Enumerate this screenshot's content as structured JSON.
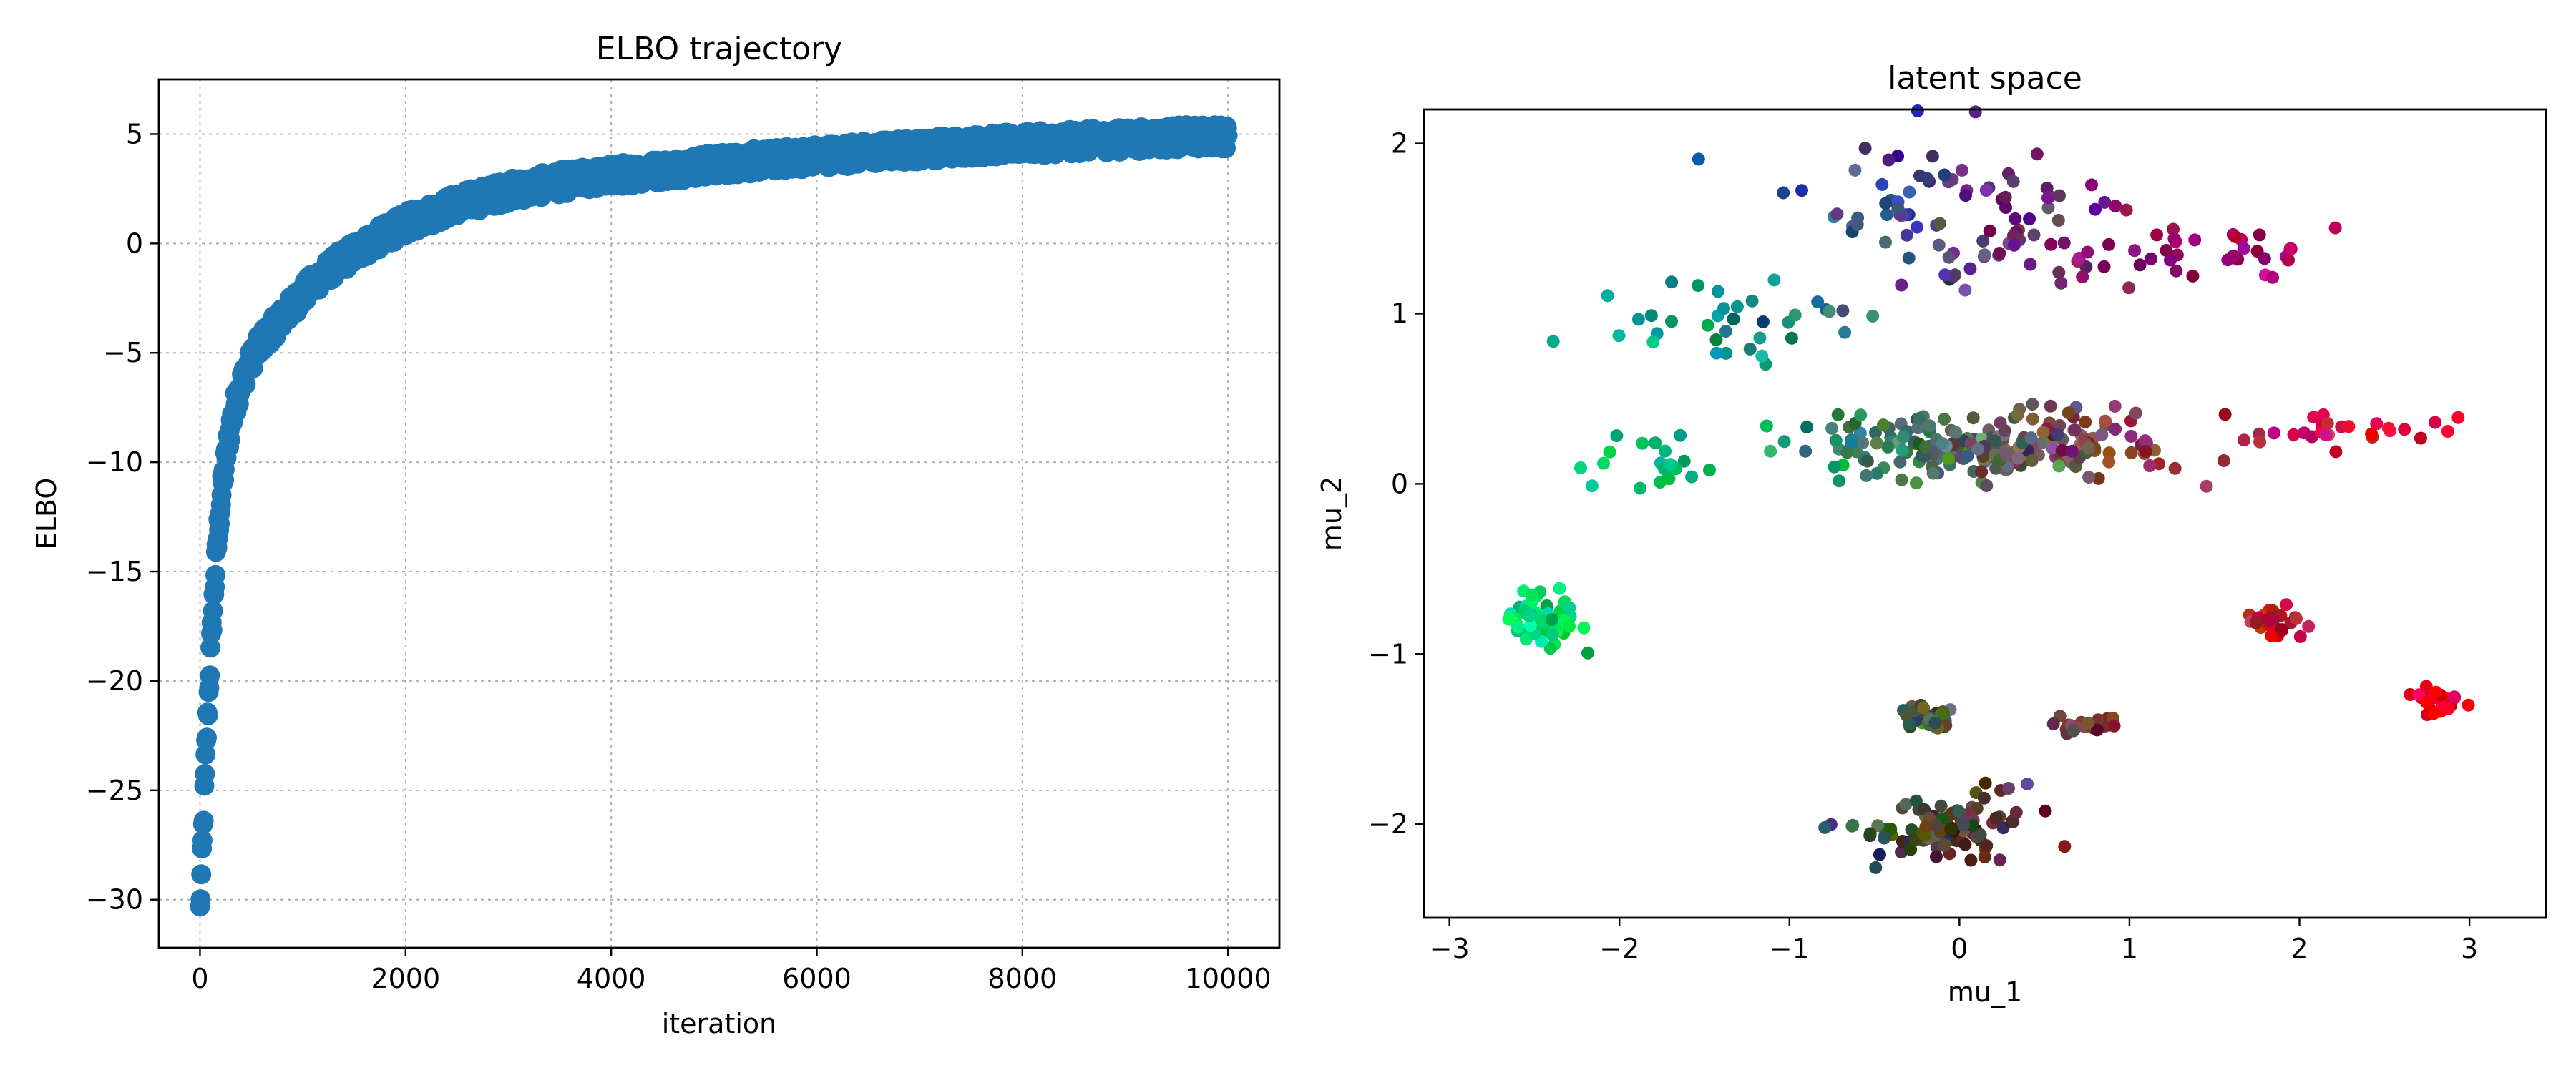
{
  "colors": {
    "elbo_series": "#1f77b4",
    "grid": "#b0b0b0"
  },
  "chart_data": [
    {
      "type": "scatter",
      "title": "ELBO trajectory",
      "xlabel": "iteration",
      "ylabel": "ELBO",
      "xlim": [
        -400,
        10500
      ],
      "ylim": [
        -32.2,
        7.5
      ],
      "xticks": [
        0,
        2000,
        4000,
        6000,
        8000,
        10000
      ],
      "xtick_labels": [
        "0",
        "2000",
        "4000",
        "6000",
        "8000",
        "10000"
      ],
      "yticks": [
        -30,
        -25,
        -20,
        -15,
        -10,
        -5,
        0,
        5
      ],
      "ytick_labels": [
        "−30",
        "−25",
        "−20",
        "−15",
        "−10",
        "−5",
        "0",
        "5"
      ],
      "grid": true,
      "marker_color": "#1f77b4",
      "trend": [
        [
          0,
          -30.5
        ],
        [
          20,
          -28
        ],
        [
          40,
          -25.5
        ],
        [
          60,
          -23
        ],
        [
          80,
          -21
        ],
        [
          100,
          -19
        ],
        [
          120,
          -17.2
        ],
        [
          150,
          -15
        ],
        [
          180,
          -13
        ],
        [
          220,
          -11
        ],
        [
          260,
          -9.5
        ],
        [
          300,
          -8.3
        ],
        [
          350,
          -7.2
        ],
        [
          400,
          -6.4
        ],
        [
          500,
          -5.3
        ],
        [
          600,
          -4.5
        ],
        [
          800,
          -3.4
        ],
        [
          1000,
          -2.3
        ],
        [
          1200,
          -1.4
        ],
        [
          1500,
          -0.4
        ],
        [
          1800,
          0.4
        ],
        [
          2000,
          0.9
        ],
        [
          2500,
          1.8
        ],
        [
          3000,
          2.4
        ],
        [
          3500,
          2.8
        ],
        [
          4000,
          3.1
        ],
        [
          4500,
          3.35
        ],
        [
          5000,
          3.6
        ],
        [
          5500,
          3.8
        ],
        [
          6000,
          4.0
        ],
        [
          6500,
          4.15
        ],
        [
          7000,
          4.3
        ],
        [
          7500,
          4.45
        ],
        [
          8000,
          4.55
        ],
        [
          8500,
          4.65
        ],
        [
          9000,
          4.75
        ],
        [
          9500,
          4.85
        ],
        [
          10000,
          4.9
        ]
      ]
    },
    {
      "type": "scatter",
      "title": "latent space",
      "xlabel": "mu_1",
      "ylabel": "mu_2",
      "xlim": [
        -3.15,
        3.45
      ],
      "ylim": [
        -2.55,
        2.2
      ],
      "xticks": [
        -3,
        -2,
        -1,
        0,
        1,
        2,
        3
      ],
      "xtick_labels": [
        "−3",
        "−2",
        "−1",
        "0",
        "1",
        "2",
        "3"
      ],
      "yticks": [
        -2,
        -1,
        0,
        1,
        2
      ],
      "ytick_labels": [
        "−2",
        "−1",
        "0",
        "1",
        "2"
      ],
      "grid": false,
      "clusters": [
        {
          "center": [
            -0.05,
            1.6
          ],
          "spread": [
            0.9,
            0.4
          ],
          "count": 90,
          "note": "upper arc"
        },
        {
          "center": [
            1.4,
            1.35
          ],
          "spread": [
            0.8,
            0.2
          ],
          "count": 40,
          "note": "upper arc right"
        },
        {
          "center": [
            -1.3,
            0.95
          ],
          "spread": [
            0.7,
            0.25
          ],
          "count": 35,
          "note": "upper arc left"
        },
        {
          "center": [
            0.2,
            0.22
          ],
          "spread": [
            1.0,
            0.18
          ],
          "count": 230,
          "note": "middle band"
        },
        {
          "center": [
            -1.9,
            0.1
          ],
          "spread": [
            0.4,
            0.2
          ],
          "count": 20,
          "note": "middle band left"
        },
        {
          "center": [
            2.2,
            0.3
          ],
          "spread": [
            0.55,
            0.1
          ],
          "count": 25,
          "note": "middle band right"
        },
        {
          "center": [
            -2.45,
            -0.8
          ],
          "spread": [
            0.25,
            0.18
          ],
          "count": 55,
          "note": "left cluster"
        },
        {
          "center": [
            1.85,
            -0.82
          ],
          "spread": [
            0.13,
            0.08
          ],
          "count": 28,
          "note": "right cluster"
        },
        {
          "center": [
            2.8,
            -1.27
          ],
          "spread": [
            0.14,
            0.08
          ],
          "count": 22,
          "note": "far right cluster"
        },
        {
          "center": [
            -0.2,
            -1.37
          ],
          "spread": [
            0.18,
            0.07
          ],
          "count": 40,
          "note": "lower cluster"
        },
        {
          "center": [
            0.75,
            -1.42
          ],
          "spread": [
            0.25,
            0.06
          ],
          "count": 22,
          "note": "lower middle cluster"
        },
        {
          "center": [
            -0.1,
            -2.02
          ],
          "spread": [
            0.45,
            0.16
          ],
          "count": 110,
          "note": "bottom cluster"
        }
      ]
    }
  ]
}
